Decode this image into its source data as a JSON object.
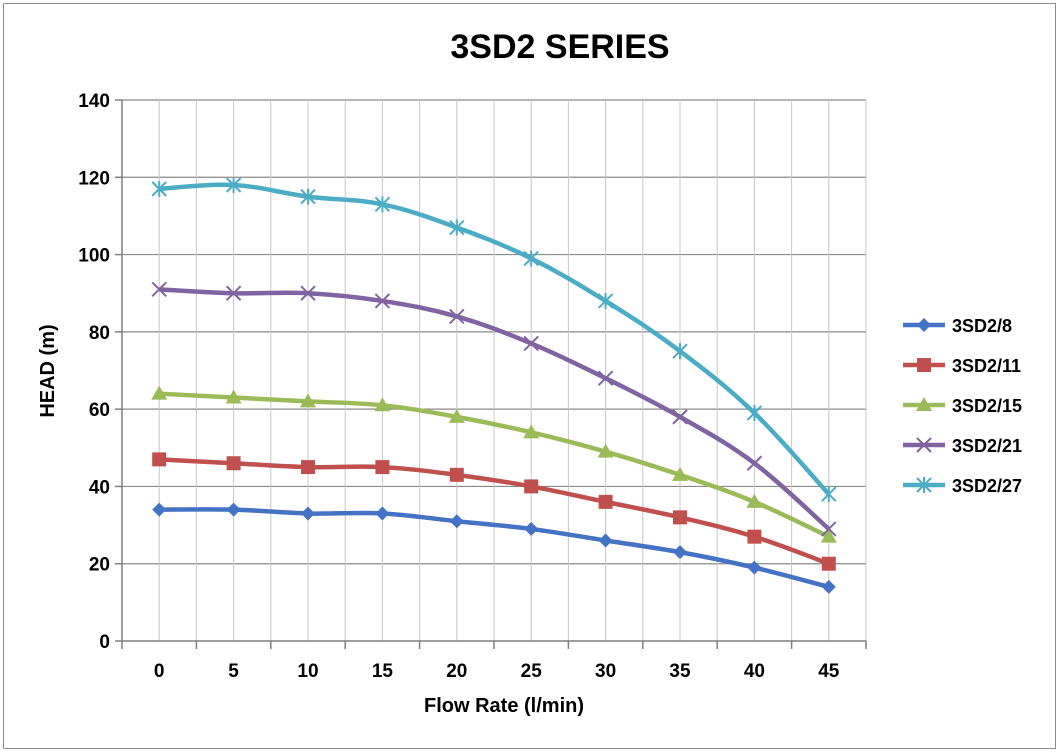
{
  "chart_data": {
    "type": "line",
    "title": "3SD2 SERIES",
    "xlabel": "Flow Rate (l/min)",
    "ylabel": "HEAD (m)",
    "categories": [
      0,
      5,
      10,
      15,
      20,
      25,
      30,
      35,
      40,
      45
    ],
    "ylim": [
      0,
      140
    ],
    "yticks": [
      0,
      20,
      40,
      60,
      80,
      100,
      120,
      140
    ],
    "grid": true,
    "legend": "right",
    "series": [
      {
        "name": "3SD2/8",
        "color": "#4472C4",
        "marker": "diamond",
        "values": [
          34,
          34,
          33,
          33,
          31,
          29,
          26,
          23,
          19,
          14
        ]
      },
      {
        "name": "3SD2/11",
        "color": "#C0504D",
        "marker": "square",
        "values": [
          47,
          46,
          45,
          45,
          43,
          40,
          36,
          32,
          27,
          20
        ]
      },
      {
        "name": "3SD2/15",
        "color": "#9BBB59",
        "marker": "triangle",
        "values": [
          64,
          63,
          62,
          61,
          58,
          54,
          49,
          43,
          36,
          27
        ]
      },
      {
        "name": "3SD2/21",
        "color": "#8064A2",
        "marker": "x",
        "values": [
          91,
          90,
          90,
          88,
          84,
          77,
          68,
          58,
          46,
          29
        ]
      },
      {
        "name": "3SD2/27",
        "color": "#4BACC6",
        "marker": "star",
        "values": [
          117,
          118,
          115,
          113,
          107,
          99,
          88,
          75,
          59,
          38
        ]
      }
    ]
  }
}
